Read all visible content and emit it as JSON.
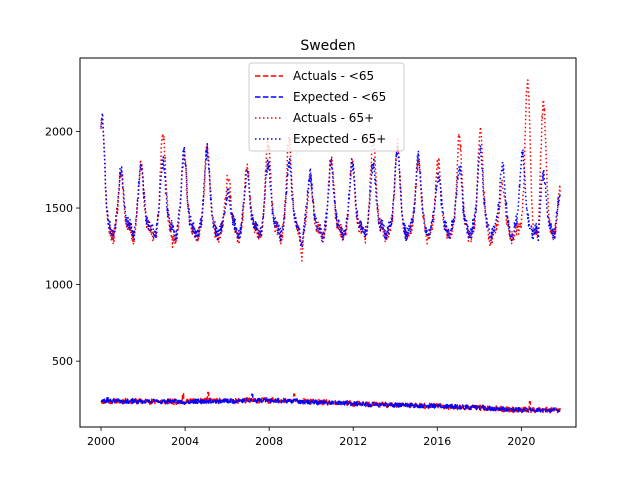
{
  "chart_data": {
    "type": "line",
    "title": "Sweden",
    "xlabel": "",
    "ylabel": "",
    "xlim": [
      1999,
      2022.6
    ],
    "ylim": [
      70,
      2480
    ],
    "x_ticks": [
      2000,
      2004,
      2008,
      2012,
      2016,
      2020
    ],
    "y_ticks": [
      500,
      1000,
      1500,
      2000
    ],
    "grid": false,
    "legend_position": "top-center",
    "x_start": 2000.0,
    "x_end": 2021.85,
    "series": [
      {
        "name": "Actuals - <65",
        "color": "#ff0000",
        "linestyle": "dashed",
        "level_by_year": [
          240,
          239,
          237,
          236,
          236,
          240,
          240,
          244,
          244,
          240,
          234,
          228,
          223,
          216,
          213,
          211,
          206,
          201,
          197,
          188,
          180,
          181,
          181
        ],
        "noise": 18,
        "spikes": [
          [
            2003.9,
            290
          ],
          [
            2005.1,
            295
          ],
          [
            2020.4,
            235
          ],
          [
            2009.2,
            285
          ]
        ]
      },
      {
        "name": "Expected - <65",
        "color": "#0000ff",
        "linestyle": "dashed",
        "level_by_year": [
          240,
          239,
          237,
          236,
          236,
          240,
          240,
          244,
          244,
          240,
          234,
          228,
          223,
          216,
          213,
          211,
          206,
          201,
          197,
          188,
          180,
          181,
          181
        ],
        "noise": 14,
        "spikes": [
          [
            2007.2,
            283
          ],
          [
            2000.3,
            270
          ]
        ]
      },
      {
        "name": "Actuals - 65+",
        "color": "#ff0000",
        "linestyle": "dotted",
        "base": 1370,
        "peaks": [
          [
            2000.05,
            2100
          ],
          [
            2000.95,
            1720
          ],
          [
            2001.9,
            1780
          ],
          [
            2002.95,
            1990
          ],
          [
            2003.95,
            1840
          ],
          [
            2005.05,
            1910
          ],
          [
            2006.05,
            1700
          ],
          [
            2006.95,
            1760
          ],
          [
            2007.95,
            1930
          ],
          [
            2008.95,
            1950
          ],
          [
            2009.95,
            1700
          ],
          [
            2010.95,
            1830
          ],
          [
            2011.95,
            1780
          ],
          [
            2012.95,
            1960
          ],
          [
            2014.1,
            1920
          ],
          [
            2015.1,
            1810
          ],
          [
            2016.05,
            1800
          ],
          [
            2017.05,
            1960
          ],
          [
            2018.05,
            1990
          ],
          [
            2019.1,
            1650
          ],
          [
            2020.3,
            2340
          ],
          [
            2021.05,
            2180
          ],
          [
            2021.85,
            1620
          ]
        ],
        "troughs": [
          [
            2003.4,
            1290
          ],
          [
            2009.55,
            1250
          ],
          [
            2018.5,
            1290
          ],
          [
            2020.8,
            1240
          ]
        ]
      },
      {
        "name": "Expected - 65+",
        "color": "#0000ff",
        "linestyle": "dotted",
        "base": 1390,
        "peaks": [
          [
            2000.05,
            2110
          ],
          [
            2000.95,
            1760
          ],
          [
            2001.9,
            1790
          ],
          [
            2002.95,
            1800
          ],
          [
            2003.95,
            1860
          ],
          [
            2005.05,
            1880
          ],
          [
            2006.05,
            1600
          ],
          [
            2006.95,
            1720
          ],
          [
            2007.95,
            1790
          ],
          [
            2008.95,
            1800
          ],
          [
            2009.95,
            1720
          ],
          [
            2010.95,
            1780
          ],
          [
            2011.95,
            1800
          ],
          [
            2012.95,
            1800
          ],
          [
            2014.1,
            1880
          ],
          [
            2015.1,
            1830
          ],
          [
            2016.05,
            1720
          ],
          [
            2017.05,
            1760
          ],
          [
            2018.05,
            1880
          ],
          [
            2019.1,
            1790
          ],
          [
            2020.05,
            1870
          ],
          [
            2021.05,
            1720
          ],
          [
            2021.85,
            1590
          ]
        ],
        "troughs": [
          [
            2009.55,
            1330
          ],
          [
            2020.8,
            1270
          ]
        ]
      }
    ]
  }
}
